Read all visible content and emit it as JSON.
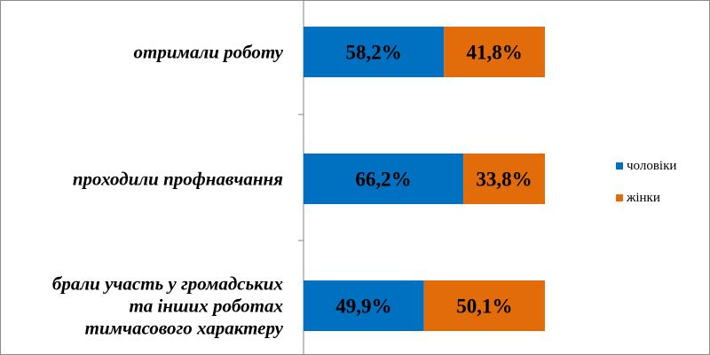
{
  "chart_data": {
    "type": "bar",
    "orientation": "horizontal",
    "stacked": true,
    "percent_stacked": true,
    "categories": [
      [
        "отримали роботу"
      ],
      [
        "проходили профнавчання"
      ],
      [
        "брали участь у громадських",
        "та інших роботах",
        "тимчасового характеру"
      ]
    ],
    "series": [
      {
        "name": "чоловіки",
        "values": [
          58.2,
          66.2,
          49.9
        ],
        "labels": [
          "58,2%",
          "66,2%",
          "49,9%"
        ],
        "color": "#0070c0"
      },
      {
        "name": "жінки",
        "values": [
          41.8,
          33.8,
          50.1
        ],
        "labels": [
          "41,8%",
          "33,8%",
          "50,1%"
        ],
        "color": "#e36c0a"
      }
    ],
    "xlim": [
      0,
      100
    ],
    "legend_position": "right",
    "grid": false
  }
}
